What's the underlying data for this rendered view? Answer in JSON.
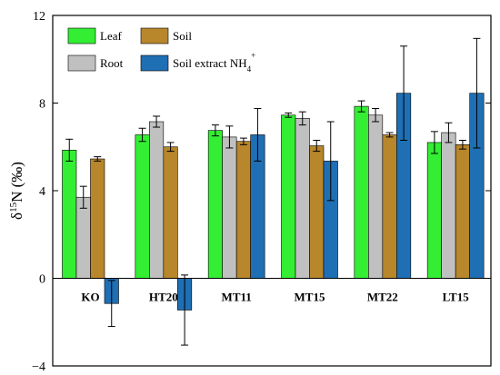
{
  "chart_data": {
    "type": "bar",
    "ylabel_prefix": "δ",
    "ylabel_sup": "15",
    "ylabel_main": "N (‰)",
    "ylim": [
      -4,
      12
    ],
    "yticks": [
      -4,
      0,
      4,
      8,
      12
    ],
    "ytick_labels": [
      "−4",
      "0",
      "4",
      "8",
      "12"
    ],
    "legend_placement": "top-left",
    "categories": [
      "KO",
      "HT20",
      "MT11",
      "MT15",
      "MT22",
      "LT15"
    ],
    "series": [
      {
        "name": "Leaf",
        "color": "#33ee33",
        "values": [
          5.85,
          6.55,
          6.75,
          7.45,
          7.85,
          6.2
        ],
        "errors": [
          0.5,
          0.3,
          0.25,
          0.1,
          0.25,
          0.5
        ]
      },
      {
        "name": "Root",
        "color": "#c0c0c0",
        "values": [
          3.7,
          7.15,
          6.45,
          7.3,
          7.45,
          6.65
        ],
        "errors": [
          0.5,
          0.25,
          0.5,
          0.3,
          0.3,
          0.45
        ]
      },
      {
        "name": "Soil",
        "color": "#b8862b",
        "values": [
          5.45,
          6.0,
          6.25,
          6.05,
          6.55,
          6.1
        ],
        "errors": [
          0.1,
          0.2,
          0.15,
          0.25,
          0.1,
          0.2
        ]
      },
      {
        "name": "Soil extract NH",
        "name_sub": "4",
        "name_sup": "+",
        "color": "#1f6fb4",
        "values": [
          -1.15,
          -1.45,
          6.55,
          5.35,
          8.45,
          8.45
        ],
        "errors": [
          1.05,
          1.6,
          1.2,
          1.8,
          2.15,
          2.5
        ]
      }
    ]
  }
}
